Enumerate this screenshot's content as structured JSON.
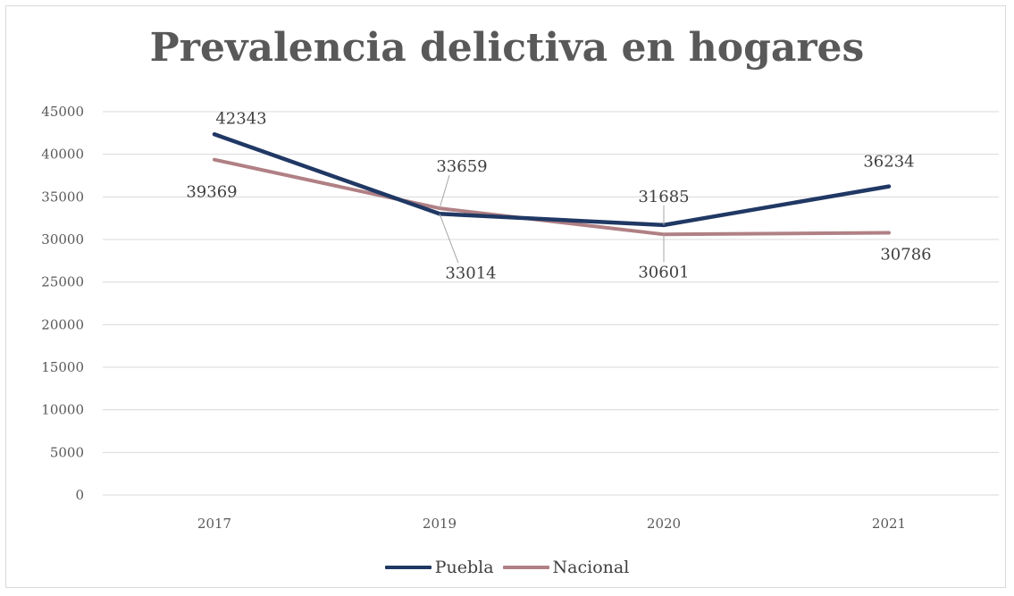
{
  "chart_data": {
    "type": "line",
    "title": "Prevalencia delictiva en hogares",
    "categories": [
      "2017",
      "2019",
      "2020",
      "2021"
    ],
    "ylim": [
      0,
      45000
    ],
    "yticks": [
      0,
      5000,
      10000,
      15000,
      20000,
      25000,
      30000,
      35000,
      40000,
      45000
    ],
    "grid": "horizontal",
    "legend_position": "bottom",
    "series": [
      {
        "name": "Puebla",
        "color": "#203864",
        "values": [
          42343,
          33014,
          31685,
          36234
        ],
        "labels": [
          "42343",
          "33014",
          "31685",
          "36234"
        ]
      },
      {
        "name": "Nacional",
        "color": "#b08085",
        "values": [
          39369,
          33659,
          30601,
          30786
        ],
        "labels": [
          "39369",
          "33659",
          "30601",
          "30786"
        ]
      }
    ]
  }
}
